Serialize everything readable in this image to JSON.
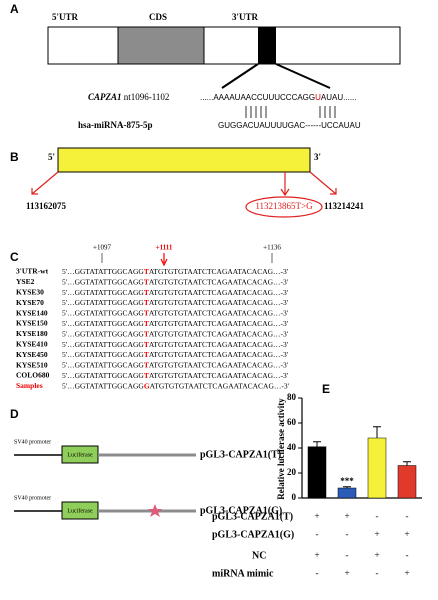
{
  "panel_a": {
    "label": "A",
    "utr5": "5'UTR",
    "cds": "CDS",
    "utr3": "3'UTR",
    "gene": "CAPZA1",
    "site": "nt1096-1102",
    "target_before": "......AAAAUAACCUUUCCCAGG",
    "target_red": "U",
    "target_after": "AUAU......",
    "mirna": "hsa-miRNA-875-5p",
    "mirna_seq": "GUGGACUAUUUUGAC------UCCAUAU"
  },
  "panel_b": {
    "label": "B",
    "end5": "5'",
    "end3": "3'",
    "start": "113162075",
    "snp": "113213865T>G",
    "end": "113214241"
  },
  "panel_c": {
    "label": "C",
    "pos_left": "+1097",
    "pos_snp": "+1111",
    "pos_right": "+1136",
    "rows": [
      {
        "name": "3'UTR-wt",
        "before": "5'…GGTATATTGGCAGG",
        "allele": "T",
        "after": "ATGTGTGTAATCTCAGAATACACAG…-3'"
      },
      {
        "name": "YSE2",
        "before": "5'…GGTATATTGGCAGG",
        "allele": "T",
        "after": "ATGTGTGTAATCTCAGAATACACAG…-3'"
      },
      {
        "name": "KYSE30",
        "before": "5'…GGTATATTGGCAGG",
        "allele": "T",
        "after": "ATGTGTGTAATCTCAGAATACACAG…-3'"
      },
      {
        "name": "KYSE70",
        "before": "5'…GGTATATTGGCAGG",
        "allele": "T",
        "after": "ATGTGTGTAATCTCAGAATACACAG…-3'"
      },
      {
        "name": "KYSE140",
        "before": "5'…GGTATATTGGCAGG",
        "allele": "T",
        "after": "ATGTGTGTAATCTCAGAATACACAG…-3'"
      },
      {
        "name": "KYSE150",
        "before": "5'…GGTATATTGGCAGG",
        "allele": "T",
        "after": "ATGTGTGTAATCTCAGAATACACAG…-3'"
      },
      {
        "name": "KYSE180",
        "before": "5'…GGTATATTGGCAGG",
        "allele": "T",
        "after": "ATGTGTGTAATCTCAGAATACACAG…-3'"
      },
      {
        "name": "KYSE410",
        "before": "5'…GGTATATTGGCAGG",
        "allele": "T",
        "after": "ATGTGTGTAATCTCAGAATACACAG…-3'"
      },
      {
        "name": "KYSE450",
        "before": "5'…GGTATATTGGCAGG",
        "allele": "T",
        "after": "ATGTGTGTAATCTCAGAATACACAG…-3'"
      },
      {
        "name": "KYSE510",
        "before": "5'…GGTATATTGGCAGG",
        "allele": "T",
        "after": "ATGTGTGTAATCTCAGAATACACAG…-3'"
      },
      {
        "name": "COLO680",
        "before": "5'…GGTATATTGGCAGG",
        "allele": "T",
        "after": "ATGTGTGTAATCTCAGAATACACAG…-3'"
      },
      {
        "name": "Samples",
        "before": "5'…GGTATATTGGCAGG",
        "allele": "G",
        "after": "ATGTGTGTAATCTCAGAATACACAG…-3'"
      }
    ]
  },
  "panel_d": {
    "label": "D",
    "promoter_1": "SV40 promoter",
    "gene_1": "Luciferase",
    "construct_1": "pGL3-CAPZA1(T)",
    "promoter_2": "SV40 promoter",
    "gene_2": "Luciferase",
    "construct_2": "pGL3-CAPZA1(G)"
  },
  "chart_data": {
    "type": "bar",
    "label": "E",
    "y_label": "Relative luciferase activity",
    "values": [
      41,
      8,
      48,
      26
    ],
    "errors": [
      4,
      1,
      9,
      3
    ],
    "colors": [
      "#000000",
      "#2a5cb8",
      "#f5f03a",
      "#e03a2a"
    ],
    "annotations": [
      null,
      "***",
      null,
      null
    ],
    "ylim": [
      0,
      80
    ],
    "yticks": [
      0,
      20,
      40,
      60,
      80
    ],
    "conditions": [
      {
        "name": "pGL3-CAPZA1(T)",
        "marks": [
          "+",
          "+",
          "-",
          "-"
        ]
      },
      {
        "name": "pGL3-CAPZA1(G)",
        "marks": [
          "-",
          "-",
          "+",
          "+"
        ]
      },
      {
        "name": "NC",
        "marks": [
          "+",
          "-",
          "+",
          "-"
        ]
      },
      {
        "name": "miRNA mimic",
        "marks": [
          "-",
          "+",
          "-",
          "+"
        ]
      }
    ]
  }
}
